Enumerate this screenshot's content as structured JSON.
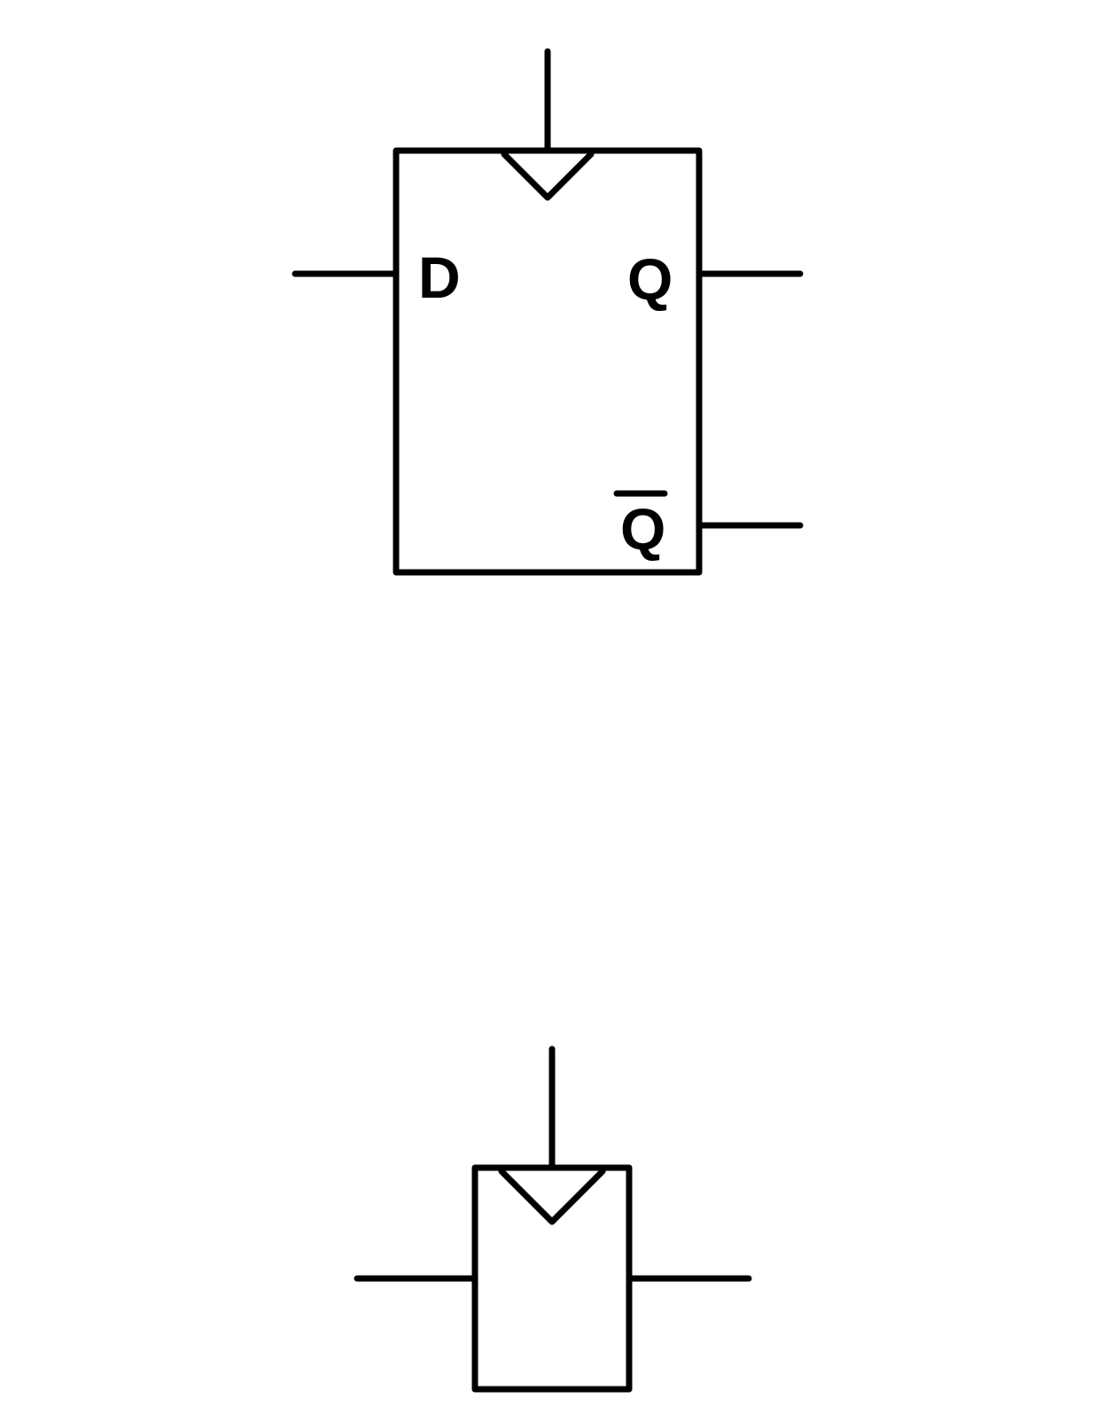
{
  "d_flip_flop": {
    "input_label": "D",
    "output_label": "Q",
    "inverted_output_label": "Q",
    "inverted_output_overbar": true,
    "clock_edge": "rising"
  },
  "generic_flip_flop": {
    "input_label": "",
    "output_label": "",
    "clock_edge": "rising"
  },
  "colors": {
    "stroke": "#000000",
    "background": "#ffffff"
  }
}
